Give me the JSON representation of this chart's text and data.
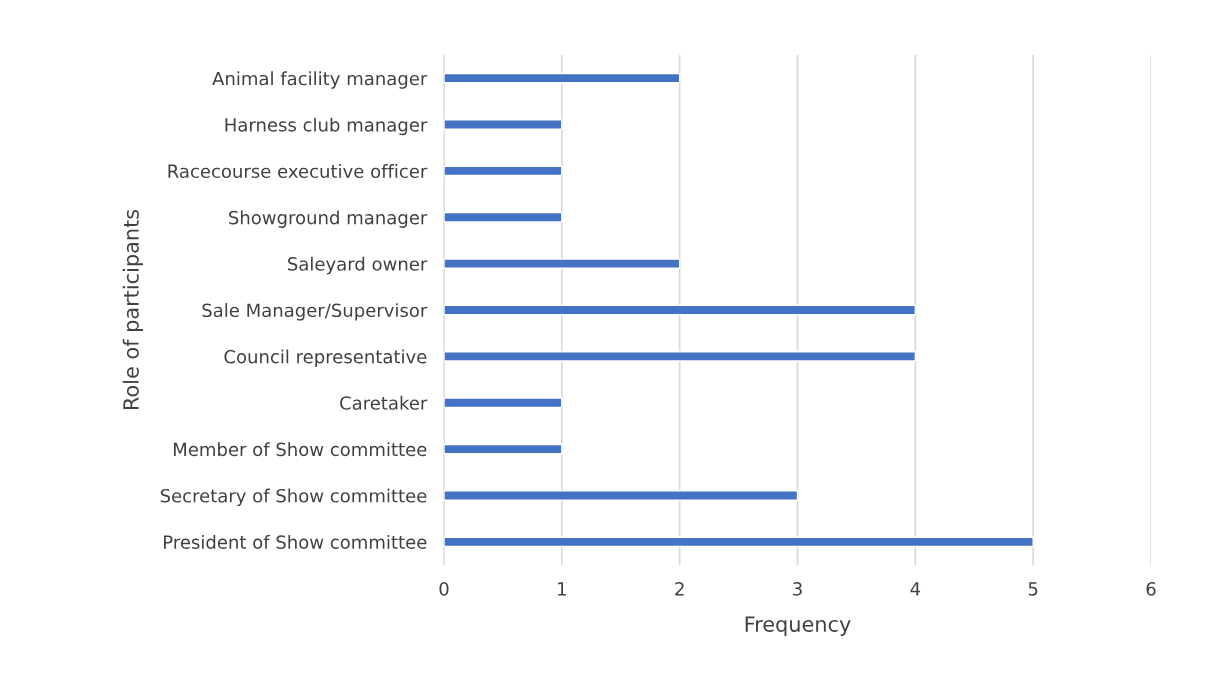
{
  "chart_data": {
    "type": "bar",
    "orientation": "horizontal",
    "xlabel": "Frequency",
    "ylabel": "Role of participants",
    "categories": [
      "Animal facility manager",
      "Harness club manager",
      "Racecourse executive officer",
      "Showground manager",
      "Saleyard owner",
      "Sale Manager/Supervisor",
      "Council representative",
      "Caretaker",
      "Member of Show committee",
      "Secretary of Show committee",
      "President of Show committee"
    ],
    "values": [
      2,
      1,
      1,
      1,
      2,
      4,
      4,
      1,
      1,
      3,
      5
    ],
    "color": "#4472c4",
    "xlim": [
      0,
      6
    ],
    "xticks": [
      0,
      1,
      2,
      3,
      4,
      5,
      6
    ],
    "grid": "x",
    "legend": false
  }
}
